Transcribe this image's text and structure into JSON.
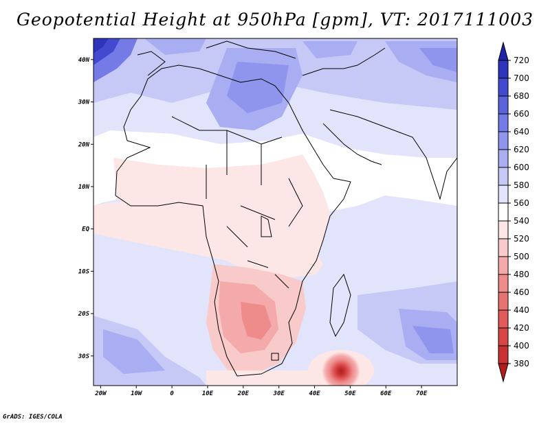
{
  "title": "Geopotential Height at 950hPa [gpm], VT: 2017111003",
  "credit": "GrADS: IGES/COLA",
  "map": {
    "lon_range": [
      -22,
      80
    ],
    "lat_range": [
      -37,
      45
    ],
    "lat_ticks": [
      {
        "value": 40,
        "label": "40N"
      },
      {
        "value": 30,
        "label": "30N"
      },
      {
        "value": 20,
        "label": "20N"
      },
      {
        "value": 10,
        "label": "10N"
      },
      {
        "value": 0,
        "label": "EQ"
      },
      {
        "value": -10,
        "label": "10S"
      },
      {
        "value": -20,
        "label": "20S"
      },
      {
        "value": -30,
        "label": "30S"
      }
    ],
    "lon_ticks": [
      {
        "value": -20,
        "label": "20W"
      },
      {
        "value": -10,
        "label": "10W"
      },
      {
        "value": 0,
        "label": "0"
      },
      {
        "value": 10,
        "label": "10E"
      },
      {
        "value": 20,
        "label": "20E"
      },
      {
        "value": 30,
        "label": "30E"
      },
      {
        "value": 40,
        "label": "40E"
      },
      {
        "value": 50,
        "label": "50E"
      },
      {
        "value": 60,
        "label": "60E"
      },
      {
        "value": 70,
        "label": "70E"
      }
    ],
    "low_center": {
      "lon": 47.5,
      "lat": -33.5,
      "value_gpm": 380
    }
  },
  "colorbar": {
    "levels": [
      "380",
      "400",
      "420",
      "440",
      "460",
      "480",
      "500",
      "520",
      "540",
      "560",
      "580",
      "600",
      "620",
      "640",
      "660",
      "680",
      "700",
      "720"
    ],
    "colors": [
      "#b21e1e",
      "#c83232",
      "#d84646",
      "#e25a5a",
      "#e87272",
      "#ee8c8c",
      "#f4aaaa",
      "#f8caca",
      "#fde6e6",
      "#ffffff",
      "#e2e4fb",
      "#c6c9f6",
      "#a9adf1",
      "#8f94ec",
      "#757be6",
      "#5c62dc",
      "#444ad0",
      "#2f34bd",
      "#1f23a8"
    ]
  }
}
